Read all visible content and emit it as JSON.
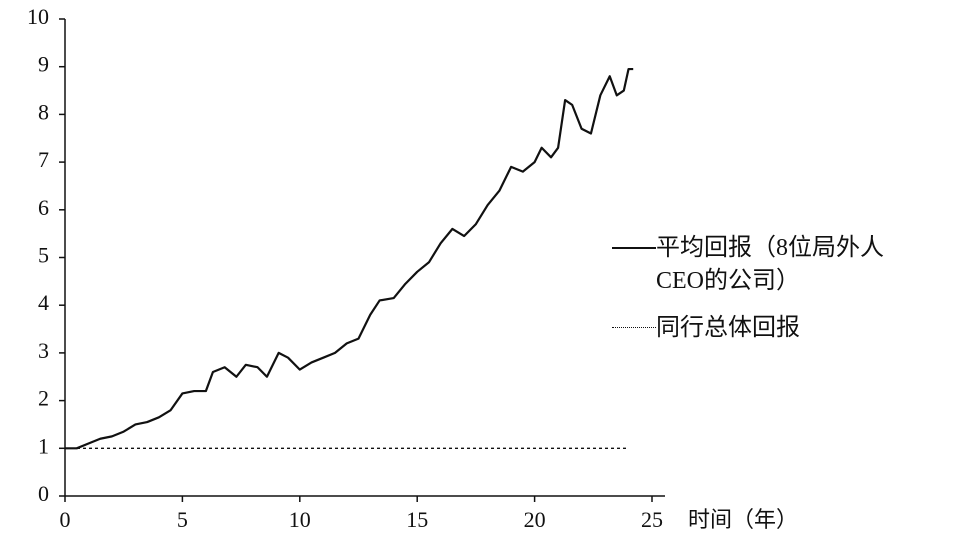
{
  "chart_data": {
    "type": "line",
    "x_label": "时间（年）",
    "xlim": [
      0,
      25
    ],
    "xticks": [
      0,
      5,
      10,
      15,
      20,
      25
    ],
    "ylim": [
      0,
      10
    ],
    "yticks": [
      0,
      1,
      2,
      3,
      4,
      5,
      6,
      7,
      8,
      9,
      10
    ],
    "series": [
      {
        "name": "平均回报（8位局外人CEO的公司）",
        "color": "#111111",
        "style": "solid",
        "x": [
          0,
          0.5,
          1,
          1.5,
          2,
          2.5,
          3,
          3.5,
          4,
          4.5,
          5,
          5.5,
          6,
          6.3,
          6.8,
          7.3,
          7.7,
          8.2,
          8.6,
          9.1,
          9.5,
          10,
          10.5,
          11,
          11.5,
          12,
          12.5,
          13,
          13.4,
          14,
          14.5,
          15,
          15.5,
          16,
          16.5,
          17,
          17.5,
          18,
          18.5,
          19,
          19.5,
          20,
          20.3,
          20.7,
          21,
          21.3,
          21.6,
          22,
          22.4,
          22.8,
          23.2,
          23.5,
          23.8,
          24.0,
          24.2
        ],
        "values": [
          1.0,
          1.0,
          1.1,
          1.2,
          1.25,
          1.35,
          1.5,
          1.55,
          1.65,
          1.8,
          2.15,
          2.2,
          2.2,
          2.6,
          2.7,
          2.5,
          2.75,
          2.7,
          2.5,
          3.0,
          2.9,
          2.65,
          2.8,
          2.9,
          3.0,
          3.2,
          3.3,
          3.8,
          4.1,
          4.15,
          4.45,
          4.7,
          4.9,
          5.3,
          5.6,
          5.45,
          5.7,
          6.1,
          6.4,
          6.9,
          6.8,
          7.0,
          7.3,
          7.1,
          7.3,
          8.3,
          8.2,
          7.7,
          7.6,
          8.4,
          8.8,
          8.4,
          8.5,
          8.95,
          8.95
        ]
      },
      {
        "name": "同行总体回报",
        "color": "#111111",
        "style": "dotted",
        "x": [
          0,
          24
        ],
        "values": [
          1,
          1
        ]
      }
    ]
  }
}
